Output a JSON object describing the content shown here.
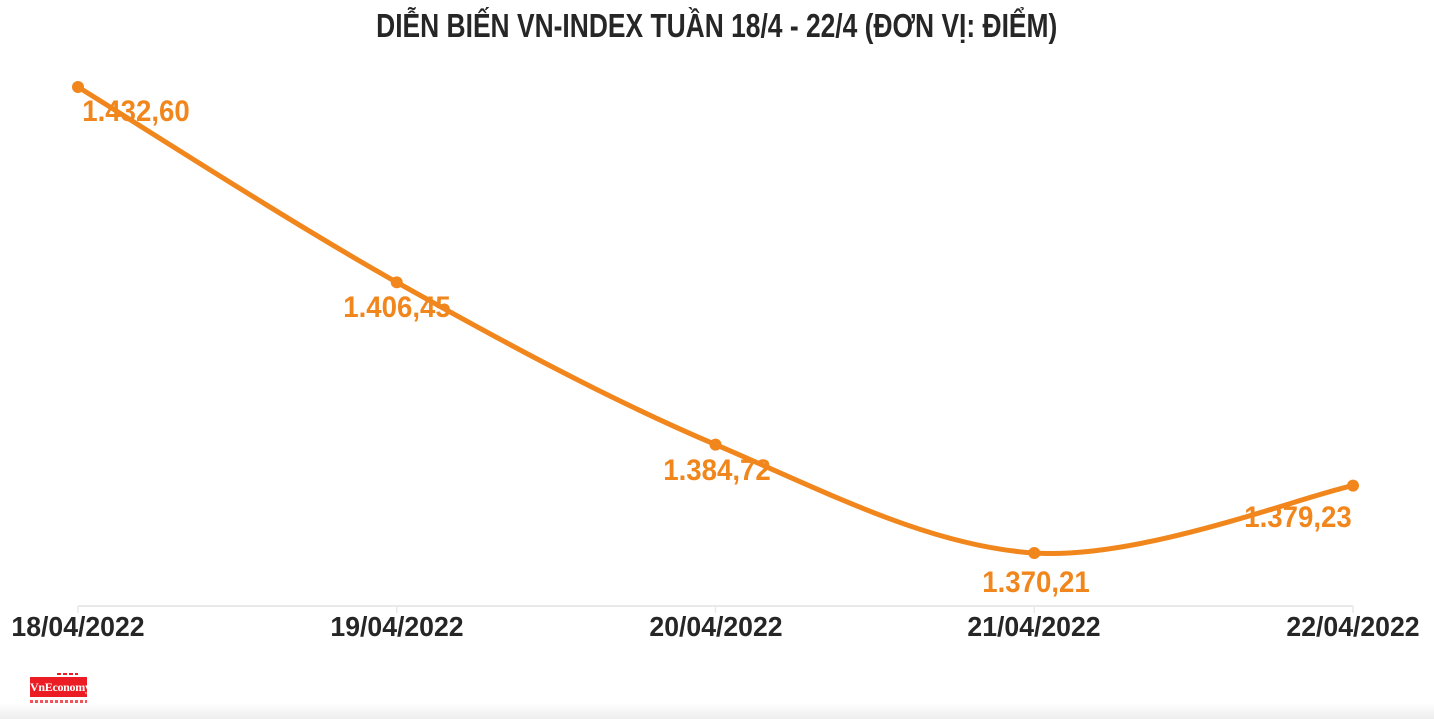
{
  "title": "DIỄN BIẾN VN-INDEX TUẦN 18/4 - 22/4 (ĐƠN VỊ: ĐIỂM)",
  "chart_data": {
    "type": "line",
    "line_style": "spline",
    "title": "DIỄN BIẾN VN-INDEX TUẦN 18/4 - 22/4 (ĐƠN VỊ: ĐIỂM)",
    "categories": [
      "18/04/2022",
      "19/04/2022",
      "20/04/2022",
      "21/04/2022",
      "22/04/2022"
    ],
    "values": [
      1432.6,
      1406.45,
      1384.72,
      1370.21,
      1379.23
    ],
    "point_labels": [
      "1.432,60",
      "1.406,45",
      "1.384,72",
      "1.370,21",
      "1.379,23"
    ],
    "xlabel": "",
    "ylabel": "",
    "unit": "ĐIỂM",
    "ylim": [
      1370.21,
      1432.6
    ],
    "grid": false,
    "legend": "none",
    "markers": true
  },
  "colors": {
    "line": "#F0861C",
    "point_label": "#F0861C",
    "title_text": "#262626",
    "axis_label_text": "#262626",
    "axis_line": "#E9E9E9",
    "logo_red": "#EC1C24",
    "logo_text": "#FFFFFF",
    "background": "#FFFFFF"
  },
  "branding": {
    "logo_text": "VnEconomy"
  }
}
